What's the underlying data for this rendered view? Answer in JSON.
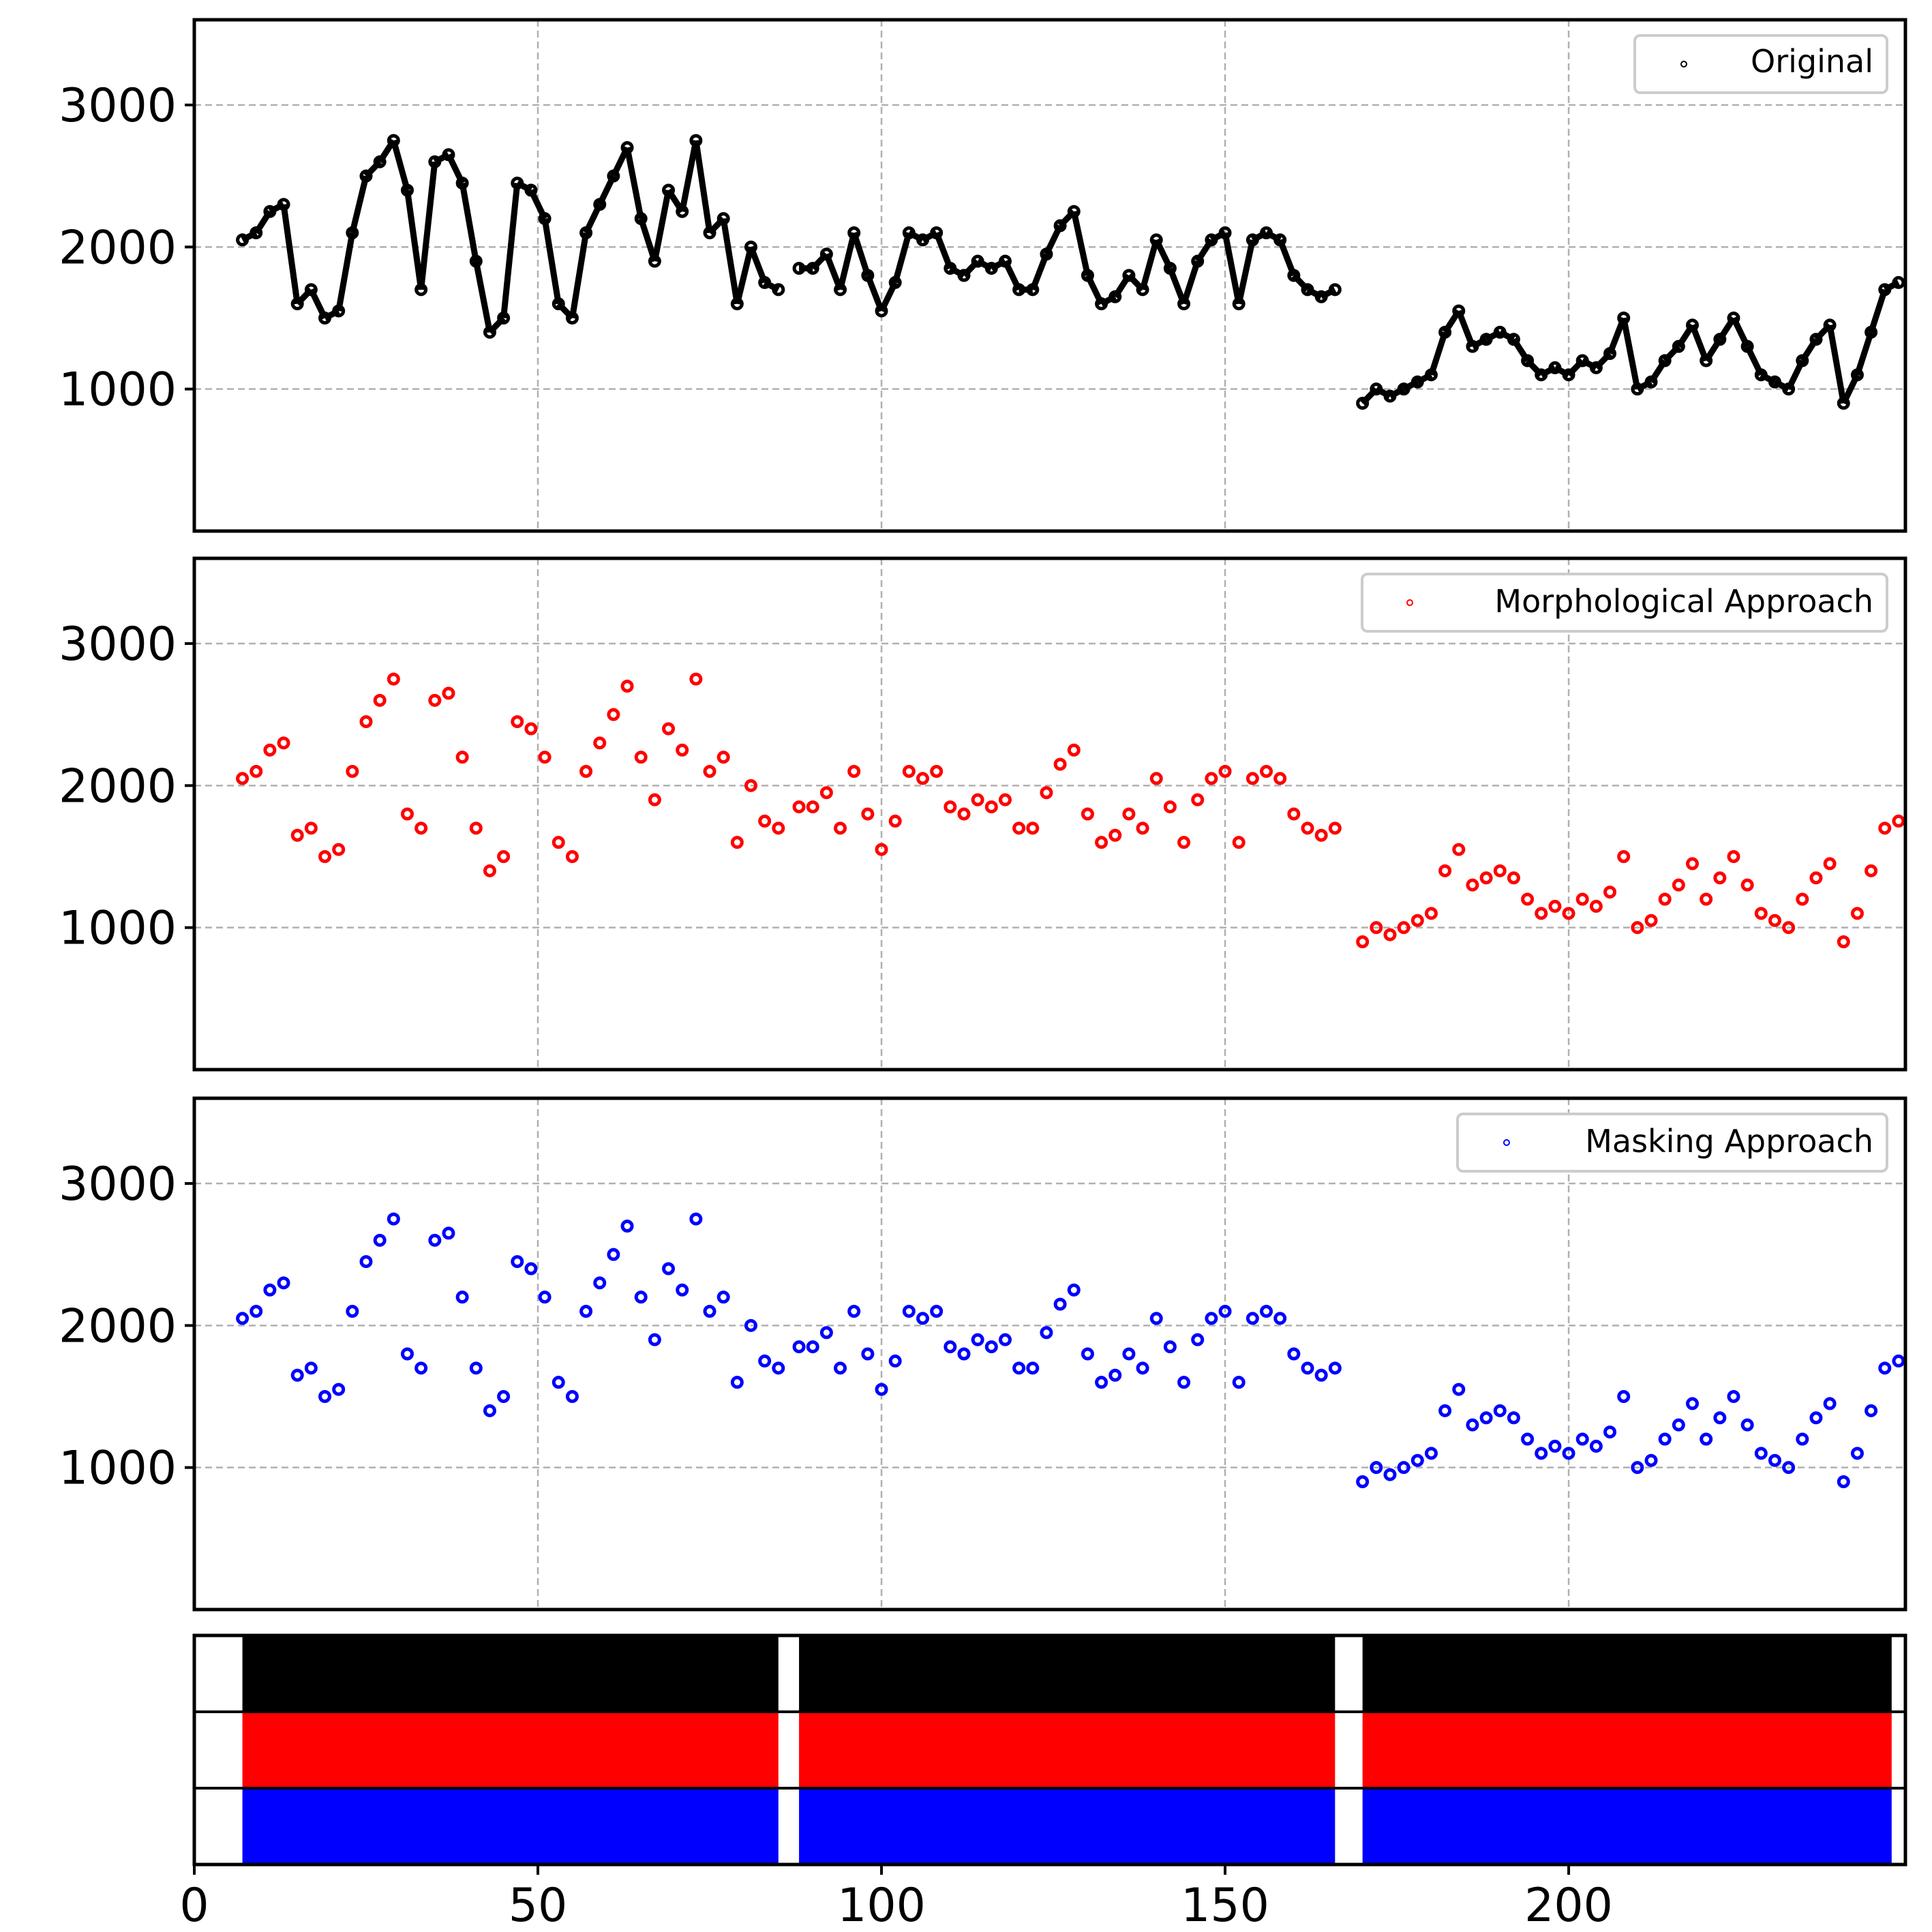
{
  "chart_data": [
    {
      "type": "scatter",
      "legend": "Original",
      "color": "#000000",
      "legend_position": "top-right",
      "xlim": [
        0,
        249
      ],
      "ylim": [
        0,
        3600
      ],
      "yticks": [
        "1000",
        "2000",
        "3000"
      ],
      "grid": true,
      "x": [
        7,
        9,
        11,
        13,
        15,
        17,
        19,
        21,
        23,
        25,
        27,
        29,
        31,
        33,
        35,
        37,
        39,
        41,
        43,
        45,
        47,
        49,
        51,
        53,
        55,
        57,
        59,
        61,
        63,
        65,
        67,
        69,
        71,
        73,
        75,
        77,
        79,
        81,
        83,
        85,
        88,
        90,
        92,
        94,
        96,
        98,
        100,
        102,
        104,
        106,
        108,
        110,
        112,
        114,
        116,
        118,
        120,
        122,
        124,
        126,
        128,
        130,
        132,
        134,
        136,
        138,
        140,
        142,
        144,
        146,
        148,
        150,
        152,
        154,
        156,
        158,
        160,
        162,
        164,
        166,
        170,
        172,
        174,
        176,
        178,
        180,
        182,
        184,
        186,
        188,
        190,
        192,
        194,
        196,
        198,
        200,
        202,
        204,
        206,
        208,
        210,
        212,
        214,
        216,
        218,
        220,
        222,
        224,
        226,
        228,
        230,
        232,
        234,
        236,
        238,
        240,
        242,
        244,
        246,
        248
      ],
      "y": [
        2050,
        2100,
        2250,
        2300,
        1600,
        1700,
        1500,
        1550,
        2100,
        2500,
        2600,
        2750,
        2400,
        1700,
        2600,
        2650,
        2450,
        1900,
        1400,
        1500,
        2450,
        2400,
        2200,
        1600,
        1500,
        2100,
        2300,
        2500,
        2700,
        2200,
        1900,
        2400,
        2250,
        2750,
        2100,
        2200,
        1600,
        2000,
        1750,
        1700,
        1850,
        1850,
        1950,
        1700,
        2100,
        1800,
        1550,
        1750,
        2100,
        2050,
        2100,
        1850,
        1800,
        1900,
        1850,
        1900,
        1700,
        1700,
        1950,
        2150,
        2250,
        1800,
        1600,
        1650,
        1800,
        1700,
        2050,
        1850,
        1600,
        1900,
        2050,
        2100,
        1600,
        2050,
        2100,
        2050,
        1800,
        1700,
        1650,
        1700,
        900,
        1000,
        950,
        1000,
        1050,
        1100,
        1400,
        1550,
        1300,
        1350,
        1400,
        1350,
        1200,
        1100,
        1150,
        1100,
        1200,
        1150,
        1250,
        1500,
        1000,
        1050,
        1200,
        1300,
        1450,
        1200,
        1350,
        1500,
        1300,
        1100,
        1050,
        1000,
        1200,
        1350,
        1450,
        900,
        1100,
        1400,
        1700,
        1750
      ]
    },
    {
      "type": "scatter",
      "legend": "Morphological Approach",
      "color": "#ff0000",
      "legend_position": "top-right",
      "xlim": [
        0,
        249
      ],
      "ylim": [
        0,
        3600
      ],
      "yticks": [
        "1000",
        "2000",
        "3000"
      ],
      "grid": true,
      "x": [
        7,
        9,
        11,
        13,
        15,
        17,
        19,
        21,
        23,
        25,
        27,
        29,
        31,
        33,
        35,
        37,
        39,
        41,
        43,
        45,
        47,
        49,
        51,
        53,
        55,
        57,
        59,
        61,
        63,
        65,
        67,
        69,
        71,
        73,
        75,
        77,
        79,
        81,
        83,
        85,
        88,
        90,
        92,
        94,
        96,
        98,
        100,
        102,
        104,
        106,
        108,
        110,
        112,
        114,
        116,
        118,
        120,
        122,
        124,
        126,
        128,
        130,
        132,
        134,
        136,
        138,
        140,
        142,
        144,
        146,
        148,
        150,
        152,
        154,
        156,
        158,
        160,
        162,
        164,
        166,
        170,
        172,
        174,
        176,
        178,
        180,
        182,
        184,
        186,
        188,
        190,
        192,
        194,
        196,
        198,
        200,
        202,
        204,
        206,
        208,
        210,
        212,
        214,
        216,
        218,
        220,
        222,
        224,
        226,
        228,
        230,
        232,
        234,
        236,
        238,
        240,
        242,
        244,
        246,
        248
      ],
      "y": [
        2050,
        2100,
        2250,
        2300,
        1650,
        1700,
        1500,
        1550,
        2100,
        2450,
        2600,
        2750,
        1800,
        1700,
        2600,
        2650,
        2200,
        1700,
        1400,
        1500,
        2450,
        2400,
        2200,
        1600,
        1500,
        2100,
        2300,
        2500,
        2700,
        2200,
        1900,
        2400,
        2250,
        2750,
        2100,
        2200,
        1600,
        2000,
        1750,
        1700,
        1850,
        1850,
        1950,
        1700,
        2100,
        1800,
        1550,
        1750,
        2100,
        2050,
        2100,
        1850,
        1800,
        1900,
        1850,
        1900,
        1700,
        1700,
        1950,
        2150,
        2250,
        1800,
        1600,
        1650,
        1800,
        1700,
        2050,
        1850,
        1600,
        1900,
        2050,
        2100,
        1600,
        2050,
        2100,
        2050,
        1800,
        1700,
        1650,
        1700,
        900,
        1000,
        950,
        1000,
        1050,
        1100,
        1400,
        1550,
        1300,
        1350,
        1400,
        1350,
        1200,
        1100,
        1150,
        1100,
        1200,
        1150,
        1250,
        1500,
        1000,
        1050,
        1200,
        1300,
        1450,
        1200,
        1350,
        1500,
        1300,
        1100,
        1050,
        1000,
        1200,
        1350,
        1450,
        900,
        1100,
        1400,
        1700,
        1750
      ]
    },
    {
      "type": "scatter",
      "legend": "Masking Approach",
      "color": "#0000ff",
      "legend_position": "top-right",
      "xlim": [
        0,
        249
      ],
      "ylim": [
        0,
        3600
      ],
      "yticks": [
        "1000",
        "2000",
        "3000"
      ],
      "grid": true,
      "x": [
        7,
        9,
        11,
        13,
        15,
        17,
        19,
        21,
        23,
        25,
        27,
        29,
        31,
        33,
        35,
        37,
        39,
        41,
        43,
        45,
        47,
        49,
        51,
        53,
        55,
        57,
        59,
        61,
        63,
        65,
        67,
        69,
        71,
        73,
        75,
        77,
        79,
        81,
        83,
        85,
        88,
        90,
        92,
        94,
        96,
        98,
        100,
        102,
        104,
        106,
        108,
        110,
        112,
        114,
        116,
        118,
        120,
        122,
        124,
        126,
        128,
        130,
        132,
        134,
        136,
        138,
        140,
        142,
        144,
        146,
        148,
        150,
        152,
        154,
        156,
        158,
        160,
        162,
        164,
        166,
        170,
        172,
        174,
        176,
        178,
        180,
        182,
        184,
        186,
        188,
        190,
        192,
        194,
        196,
        198,
        200,
        202,
        204,
        206,
        208,
        210,
        212,
        214,
        216,
        218,
        220,
        222,
        224,
        226,
        228,
        230,
        232,
        234,
        236,
        238,
        240,
        242,
        244,
        246,
        248
      ],
      "y": [
        2050,
        2100,
        2250,
        2300,
        1650,
        1700,
        1500,
        1550,
        2100,
        2450,
        2600,
        2750,
        1800,
        1700,
        2600,
        2650,
        2200,
        1700,
        1400,
        1500,
        2450,
        2400,
        2200,
        1600,
        1500,
        2100,
        2300,
        2500,
        2700,
        2200,
        1900,
        2400,
        2250,
        2750,
        2100,
        2200,
        1600,
        2000,
        1750,
        1700,
        1850,
        1850,
        1950,
        1700,
        2100,
        1800,
        1550,
        1750,
        2100,
        2050,
        2100,
        1850,
        1800,
        1900,
        1850,
        1900,
        1700,
        1700,
        1950,
        2150,
        2250,
        1800,
        1600,
        1650,
        1800,
        1700,
        2050,
        1850,
        1600,
        1900,
        2050,
        2100,
        1600,
        2050,
        2100,
        2050,
        1800,
        1700,
        1650,
        1700,
        900,
        1000,
        950,
        1000,
        1050,
        1100,
        1400,
        1550,
        1300,
        1350,
        1400,
        1350,
        1200,
        1100,
        1150,
        1100,
        1200,
        1150,
        1250,
        1500,
        1000,
        1050,
        1200,
        1300,
        1450,
        1200,
        1350,
        1500,
        1300,
        1100,
        1050,
        1000,
        1200,
        1350,
        1450,
        900,
        1100,
        1400,
        1700,
        1750
      ]
    },
    {
      "type": "event-raster",
      "xlim": [
        0,
        249
      ],
      "xticks": [
        "0",
        "50",
        "100",
        "150",
        "200"
      ],
      "rows": [
        {
          "color": "#000000",
          "segments": [
            [
              7,
              85
            ],
            [
              88,
              166
            ],
            [
              170,
              247
            ]
          ]
        },
        {
          "color": "#ff0000",
          "segments": [
            [
              7,
              85
            ],
            [
              88,
              166
            ],
            [
              170,
              247
            ]
          ]
        },
        {
          "color": "#0000ff",
          "segments": [
            [
              7,
              85
            ],
            [
              88,
              166
            ],
            [
              170,
              247
            ]
          ]
        }
      ]
    }
  ]
}
